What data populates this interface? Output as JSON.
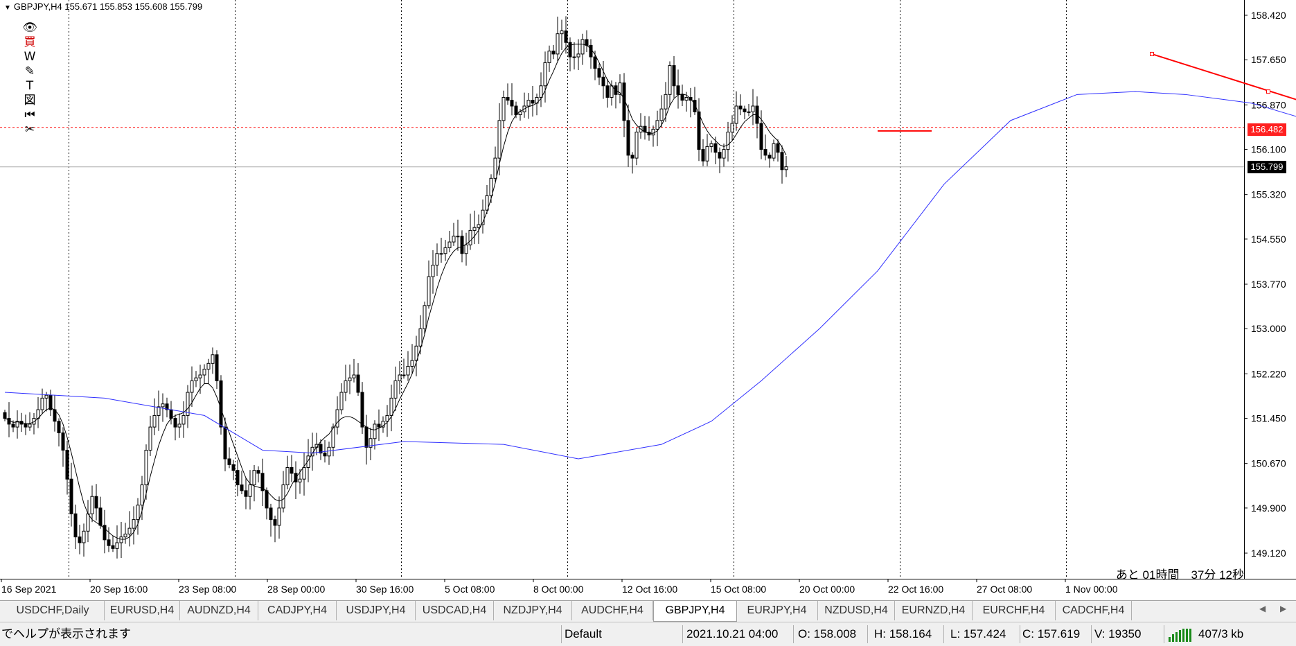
{
  "header": {
    "symbol": "GBPJPY,H4",
    "ohlc": "155.671 155.853 155.608 155.799"
  },
  "tools": [
    {
      "icon": "eye-icon",
      "glyph": "👁"
    },
    {
      "icon": "buy-icon",
      "glyph": "買"
    },
    {
      "icon": "w-icon",
      "glyph": "W"
    },
    {
      "icon": "pencil-icon",
      "glyph": "✎"
    },
    {
      "icon": "text-icon",
      "glyph": "T"
    },
    {
      "icon": "chart-icon",
      "glyph": "図"
    },
    {
      "icon": "rewind-icon",
      "glyph": "⏮"
    },
    {
      "icon": "scissors-icon",
      "glyph": "✂"
    }
  ],
  "chart_data": {
    "type": "candlestick",
    "y_ticks": [
      "158.420",
      "157.650",
      "156.870",
      "156.100",
      "155.320",
      "154.550",
      "153.770",
      "153.000",
      "152.220",
      "151.450",
      "150.670",
      "149.900",
      "149.120"
    ],
    "ylim": [
      148.75,
      158.65
    ],
    "x_ticks": [
      "16 Sep 2021",
      "20 Sep 16:00",
      "23 Sep 08:00",
      "28 Sep 00:00",
      "30 Sep 16:00",
      "5 Oct 08:00",
      "8 Oct 00:00",
      "12 Oct 16:00",
      "15 Oct 08:00",
      "20 Oct 00:00",
      "22 Oct 16:00",
      "27 Oct 08:00",
      "1 Nov 00:00"
    ],
    "bid_line": 155.799,
    "alert_line": 156.482,
    "bid_label": "155.799",
    "alert_label": "156.482",
    "closes": [
      151.45,
      151.35,
      151.3,
      151.4,
      151.35,
      151.3,
      151.35,
      151.45,
      151.6,
      151.8,
      151.85,
      151.6,
      151.4,
      151.2,
      150.9,
      150.4,
      149.8,
      149.4,
      149.3,
      149.5,
      149.8,
      150.1,
      149.9,
      149.6,
      149.35,
      149.25,
      149.2,
      149.3,
      149.4,
      149.45,
      149.55,
      149.7,
      149.95,
      150.3,
      150.9,
      151.3,
      151.5,
      151.65,
      151.7,
      151.6,
      151.45,
      151.3,
      151.35,
      151.5,
      151.9,
      152.1,
      152.15,
      152.2,
      152.3,
      152.4,
      152.55,
      152.1,
      151.3,
      150.75,
      150.65,
      150.55,
      150.3,
      150.2,
      150.1,
      150.3,
      150.55,
      150.5,
      150.2,
      149.9,
      149.7,
      149.6,
      149.9,
      150.3,
      150.6,
      150.5,
      150.35,
      150.4,
      150.6,
      150.8,
      150.95,
      151.0,
      150.85,
      150.8,
      150.95,
      151.3,
      151.6,
      151.9,
      152.1,
      152.15,
      152.2,
      151.9,
      151.3,
      150.95,
      151.1,
      151.35,
      151.3,
      151.4,
      151.5,
      151.8,
      152.1,
      152.2,
      152.2,
      152.35,
      152.45,
      152.7,
      153.0,
      153.4,
      153.9,
      154.1,
      154.3,
      154.3,
      154.4,
      154.5,
      154.6,
      154.6,
      154.3,
      154.45,
      154.7,
      154.75,
      154.8,
      155.05,
      155.3,
      155.6,
      155.95,
      156.6,
      157.0,
      156.95,
      156.85,
      156.7,
      156.75,
      156.85,
      156.95,
      156.9,
      157.0,
      157.2,
      157.6,
      157.8,
      157.75,
      158.1,
      158.15,
      157.95,
      157.7,
      157.7,
      157.75,
      158.0,
      157.9,
      157.7,
      157.5,
      157.35,
      157.2,
      157.0,
      157.2,
      157.05,
      157.25,
      156.6,
      156.0,
      155.95,
      156.4,
      156.5,
      156.4,
      156.35,
      156.45,
      156.6,
      156.8,
      157.05,
      157.55,
      157.2,
      157.05,
      156.95,
      157.0,
      156.95,
      156.75,
      156.1,
      155.9,
      156.15,
      156.2,
      156.05,
      155.95,
      156.1,
      156.4,
      156.55,
      156.85,
      156.8,
      156.75,
      156.75,
      156.85,
      156.55,
      156.1,
      156.0,
      155.95,
      156.2,
      156.05,
      155.75,
      155.8
    ],
    "ma_fast": [
      151.45,
      151.42,
      151.38,
      151.39,
      151.38,
      151.36,
      151.36,
      151.39,
      151.45,
      151.53,
      151.6,
      151.63,
      151.6,
      151.51,
      151.35,
      151.12,
      150.85,
      150.55,
      150.25,
      149.98,
      149.8,
      149.7,
      149.65,
      149.6,
      149.55,
      149.48,
      149.42,
      149.38,
      149.36,
      149.36,
      149.4,
      149.48,
      149.62,
      149.85,
      150.15,
      150.45,
      150.72,
      150.98,
      151.18,
      151.35,
      151.45,
      151.5,
      151.52,
      151.55,
      151.62,
      151.72,
      151.85,
      151.97,
      152.05,
      152.05,
      151.98,
      151.82,
      151.62,
      151.4,
      151.2,
      151.0,
      150.8,
      150.6,
      150.42,
      150.32,
      150.28,
      150.26,
      150.24,
      150.2,
      150.12,
      150.05,
      150.02,
      150.05,
      150.15,
      150.3,
      150.42,
      150.52,
      150.62,
      150.72,
      150.85,
      150.95,
      151.05,
      151.12,
      151.18,
      151.28,
      151.38,
      151.45,
      151.48,
      151.48,
      151.45,
      151.4,
      151.35,
      151.3,
      151.26,
      151.25,
      151.28,
      151.32,
      151.38,
      151.48,
      151.62,
      151.78,
      151.92,
      152.06,
      152.22,
      152.42,
      152.65,
      152.9,
      153.2,
      153.45,
      153.7,
      153.92,
      154.1,
      154.24,
      154.34,
      154.4,
      154.42,
      154.46,
      154.52,
      154.6,
      154.7,
      154.84,
      155.02,
      155.25,
      155.52,
      155.85,
      156.15,
      156.4,
      156.58,
      156.7,
      156.76,
      156.8,
      156.84,
      156.86,
      156.9,
      156.98,
      157.12,
      157.3,
      157.45,
      157.62,
      157.76,
      157.86,
      157.9,
      157.92,
      157.92,
      157.92,
      157.9,
      157.84,
      157.74,
      157.6,
      157.45,
      157.3,
      157.2,
      157.12,
      157.08,
      156.98,
      156.8,
      156.62,
      156.52,
      156.45,
      156.4,
      156.38,
      156.38,
      156.42,
      156.52,
      156.66,
      156.86,
      156.98,
      157.04,
      157.06,
      157.04,
      156.98,
      156.88,
      156.72,
      156.55,
      156.42,
      156.32,
      156.25,
      156.18,
      156.15,
      156.18,
      156.25,
      156.36,
      156.48,
      156.58,
      156.64,
      156.7,
      156.7,
      156.62,
      156.52,
      156.4,
      156.32,
      156.25,
      156.14,
      156.0
    ],
    "ma_slow_points": [
      [
        0,
        151.9
      ],
      [
        24,
        151.8
      ],
      [
        48,
        151.5
      ],
      [
        62,
        150.9
      ],
      [
        74,
        150.85
      ],
      [
        96,
        151.05
      ],
      [
        120,
        151.0
      ],
      [
        138,
        150.75
      ],
      [
        158,
        151.0
      ],
      [
        170,
        151.4
      ],
      [
        182,
        152.1
      ],
      [
        196,
        153.0
      ],
      [
        210,
        154.0
      ],
      [
        226,
        155.5
      ],
      [
        242,
        156.6
      ],
      [
        258,
        157.05
      ],
      [
        272,
        157.1
      ],
      [
        284,
        157.05
      ],
      [
        300,
        156.9
      ],
      [
        314,
        156.6
      ]
    ],
    "trend_line": {
      "from": [
        276,
        157.75
      ],
      "to": [
        332,
        156.48
      ]
    },
    "trend_mid_point": [
      304,
      157.1
    ],
    "support_line": {
      "from": [
        210,
        156.42
      ],
      "to": [
        223,
        156.42
      ]
    }
  },
  "countdown": "あと 01時間　37分 12秒",
  "tabs": [
    "USDCHF,Daily",
    "EURUSD,H4",
    "AUDNZD,H4",
    "CADJPY,H4",
    "USDJPY,H4",
    "USDCAD,H4",
    "NZDJPY,H4",
    "AUDCHF,H4",
    "GBPJPY,H4",
    "EURJPY,H4",
    "NZDUSD,H4",
    "EURNZD,H4",
    "EURCHF,H4",
    "CADCHF,H4"
  ],
  "active_tab": "GBPJPY,H4",
  "status": {
    "help": "でヘルプが表示されます",
    "profile": "Default",
    "datetime": "2021.10.21 04:00",
    "open": "O: 158.008",
    "high": "H: 158.164",
    "low": "L: 157.424",
    "close": "C: 157.619",
    "volume": "V: 19350",
    "traffic": "407/3 kb"
  },
  "colors": {
    "fast_ma": "#000000",
    "slow_ma": "#3030ff",
    "trend": "#ff0000",
    "alert": "#ff0000",
    "bid": "#000000"
  }
}
